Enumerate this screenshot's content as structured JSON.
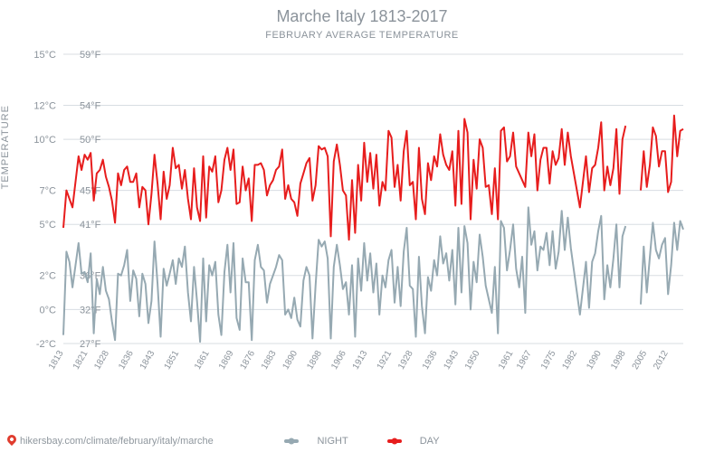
{
  "title": "Marche Italy 1813-2017",
  "subtitle": "FEBRUARY AVERAGE TEMPERATURE",
  "ylabel": "TEMPERATURE",
  "footer_url": "hikersbay.com/climate/february/italy/marche",
  "legend": {
    "night": "NIGHT",
    "day": "DAY"
  },
  "chart": {
    "type": "line",
    "background_color": "#ffffff",
    "grid_color": "#d8dde2",
    "text_color": "#8b939b",
    "series_colors": {
      "night": "#96a9b2",
      "day": "#e71d1d"
    },
    "line_width": 2,
    "xlim": [
      1813,
      2017
    ],
    "ylim_c": [
      -2,
      15
    ],
    "yticks": [
      {
        "c": -2,
        "f": 27
      },
      {
        "c": 0,
        "f": 32
      },
      {
        "c": 2,
        "f": 36
      },
      {
        "c": 5,
        "f": 41
      },
      {
        "c": 7,
        "f": 45
      },
      {
        "c": 10,
        "f": 50
      },
      {
        "c": 12,
        "f": 54
      },
      {
        "c": 15,
        "f": 59
      }
    ],
    "xticks": [
      1813,
      1821,
      1828,
      1836,
      1843,
      1851,
      1861,
      1869,
      1876,
      1883,
      1890,
      1898,
      1906,
      1913,
      1921,
      1928,
      1936,
      1943,
      1950,
      1961,
      1967,
      1975,
      1982,
      1990,
      1998,
      2005,
      2012
    ],
    "night": [
      [
        1813,
        -1.5
      ],
      [
        1814,
        3.4
      ],
      [
        1815,
        2.8
      ],
      [
        1816,
        1.3
      ],
      [
        1818,
        3.9
      ],
      [
        1819,
        2.1
      ],
      [
        1820,
        2.2
      ],
      [
        1821,
        1.6
      ],
      [
        1822,
        3.3
      ],
      [
        1823,
        -1.4
      ],
      [
        1824,
        1.8
      ],
      [
        1825,
        0.9
      ],
      [
        1826,
        2.5
      ],
      [
        1827,
        1.1
      ],
      [
        1828,
        0.6
      ],
      [
        1829,
        -0.7
      ],
      [
        1830,
        -1.8
      ],
      [
        1831,
        2.1
      ],
      [
        1832,
        2.0
      ],
      [
        1833,
        2.6
      ],
      [
        1834,
        3.5
      ],
      [
        1835,
        0.5
      ],
      [
        1836,
        2.3
      ],
      [
        1837,
        1.8
      ],
      [
        1838,
        -0.4
      ],
      [
        1839,
        2.1
      ],
      [
        1840,
        1.5
      ],
      [
        1841,
        -0.8
      ],
      [
        1842,
        0.5
      ],
      [
        1843,
        4.0
      ],
      [
        1844,
        1.5
      ],
      [
        1845,
        -1.6
      ],
      [
        1846,
        2.4
      ],
      [
        1847,
        1.4
      ],
      [
        1848,
        2.1
      ],
      [
        1849,
        2.9
      ],
      [
        1850,
        1.5
      ],
      [
        1851,
        3.0
      ],
      [
        1852,
        2.5
      ],
      [
        1853,
        3.7
      ],
      [
        1854,
        1.0
      ],
      [
        1855,
        -0.7
      ],
      [
        1856,
        2.5
      ],
      [
        1857,
        0.5
      ],
      [
        1858,
        -1.9
      ],
      [
        1859,
        3.0
      ],
      [
        1860,
        -0.7
      ],
      [
        1861,
        2.6
      ],
      [
        1862,
        2.0
      ],
      [
        1863,
        2.8
      ],
      [
        1864,
        -0.3
      ],
      [
        1865,
        -1.5
      ],
      [
        1866,
        2.2
      ],
      [
        1867,
        3.8
      ],
      [
        1868,
        1.0
      ],
      [
        1869,
        3.9
      ],
      [
        1870,
        -0.5
      ],
      [
        1871,
        -1.2
      ],
      [
        1872,
        3.0
      ],
      [
        1873,
        1.6
      ],
      [
        1874,
        1.6
      ],
      [
        1875,
        -1.8
      ],
      [
        1876,
        2.9
      ],
      [
        1877,
        3.8
      ],
      [
        1878,
        2.5
      ],
      [
        1879,
        2.3
      ],
      [
        1880,
        0.4
      ],
      [
        1881,
        1.5
      ],
      [
        1882,
        2.0
      ],
      [
        1883,
        2.5
      ],
      [
        1884,
        3.2
      ],
      [
        1885,
        2.9
      ],
      [
        1886,
        -0.3
      ],
      [
        1887,
        0.0
      ],
      [
        1888,
        -0.5
      ],
      [
        1889,
        0.7
      ],
      [
        1890,
        -0.6
      ],
      [
        1891,
        -1.0
      ],
      [
        1892,
        1.7
      ],
      [
        1893,
        2.5
      ],
      [
        1894,
        2.0
      ],
      [
        1895,
        -1.7
      ],
      [
        1896,
        1.4
      ],
      [
        1897,
        4.1
      ],
      [
        1898,
        3.7
      ],
      [
        1899,
        4.0
      ],
      [
        1900,
        3.0
      ],
      [
        1901,
        -1.7
      ],
      [
        1902,
        2.5
      ],
      [
        1903,
        3.8
      ],
      [
        1904,
        2.6
      ],
      [
        1905,
        1.2
      ],
      [
        1906,
        1.6
      ],
      [
        1907,
        -0.3
      ],
      [
        1908,
        2.6
      ],
      [
        1909,
        -1.6
      ],
      [
        1910,
        3.0
      ],
      [
        1911,
        1.1
      ],
      [
        1912,
        3.9
      ],
      [
        1913,
        1.7
      ],
      [
        1914,
        3.3
      ],
      [
        1915,
        1.0
      ],
      [
        1916,
        2.7
      ],
      [
        1917,
        -0.3
      ],
      [
        1918,
        2.0
      ],
      [
        1919,
        1.3
      ],
      [
        1920,
        2.9
      ],
      [
        1921,
        3.5
      ],
      [
        1922,
        0.4
      ],
      [
        1923,
        2.5
      ],
      [
        1924,
        0.2
      ],
      [
        1925,
        3.4
      ],
      [
        1926,
        4.8
      ],
      [
        1927,
        1.4
      ],
      [
        1928,
        1.2
      ],
      [
        1929,
        -1.6
      ],
      [
        1930,
        3.1
      ],
      [
        1931,
        0.2
      ],
      [
        1932,
        -1.4
      ],
      [
        1933,
        1.9
      ],
      [
        1934,
        1.1
      ],
      [
        1935,
        2.9
      ],
      [
        1936,
        2.0
      ],
      [
        1937,
        4.3
      ],
      [
        1938,
        2.7
      ],
      [
        1939,
        3.3
      ],
      [
        1940,
        1.7
      ],
      [
        1941,
        3.5
      ],
      [
        1942,
        0.3
      ],
      [
        1943,
        4.8
      ],
      [
        1944,
        1.0
      ],
      [
        1945,
        4.9
      ],
      [
        1946,
        3.9
      ],
      [
        1947,
        0.0
      ],
      [
        1948,
        2.8
      ],
      [
        1949,
        1.6
      ],
      [
        1950,
        4.4
      ],
      [
        1951,
        3.1
      ],
      [
        1952,
        1.4
      ],
      [
        1953,
        0.6
      ],
      [
        1954,
        -0.2
      ],
      [
        1955,
        2.5
      ],
      [
        1956,
        -1.4
      ],
      [
        1957,
        5.2
      ],
      [
        1958,
        4.8
      ],
      [
        1959,
        2.3
      ],
      [
        1960,
        3.5
      ],
      [
        1961,
        5.0
      ],
      [
        1962,
        2.4
      ],
      [
        1963,
        1.3
      ],
      [
        1964,
        3.1
      ],
      [
        1965,
        -0.2
      ],
      [
        1966,
        6.0
      ],
      [
        1967,
        3.8
      ],
      [
        1968,
        4.6
      ],
      [
        1969,
        2.3
      ],
      [
        1970,
        3.7
      ],
      [
        1971,
        3.5
      ],
      [
        1972,
        4.5
      ],
      [
        1973,
        2.6
      ],
      [
        1974,
        4.6
      ],
      [
        1975,
        2.4
      ],
      [
        1976,
        3.4
      ],
      [
        1977,
        5.8
      ],
      [
        1978,
        3.5
      ],
      [
        1979,
        5.4
      ],
      [
        1980,
        3.6
      ],
      [
        1983,
        -0.3
      ],
      [
        1985,
        2.8
      ],
      [
        1986,
        0.1
      ],
      [
        1987,
        2.8
      ],
      [
        1988,
        3.3
      ],
      [
        1989,
        4.6
      ],
      [
        1990,
        5.5
      ],
      [
        1991,
        0.6
      ],
      [
        1992,
        2.6
      ],
      [
        1993,
        1.3
      ],
      [
        1994,
        3.0
      ],
      [
        1995,
        5.0
      ],
      [
        1996,
        1.3
      ],
      [
        1997,
        4.3
      ],
      [
        1998,
        4.9
      ],
      [
        2003,
        0.3
      ],
      [
        2004,
        3.7
      ],
      [
        2005,
        1.0
      ],
      [
        2006,
        3.1
      ],
      [
        2007,
        5.1
      ],
      [
        2008,
        3.5
      ],
      [
        2009,
        3.0
      ],
      [
        2010,
        3.8
      ],
      [
        2011,
        4.2
      ],
      [
        2012,
        0.9
      ],
      [
        2013,
        2.6
      ],
      [
        2014,
        5.1
      ],
      [
        2015,
        3.5
      ],
      [
        2016,
        5.2
      ],
      [
        2017,
        4.7
      ]
    ],
    "day": [
      [
        1813,
        4.8
      ],
      [
        1814,
        7.0
      ],
      [
        1816,
        6.0
      ],
      [
        1818,
        9.0
      ],
      [
        1819,
        8.2
      ],
      [
        1820,
        9.1
      ],
      [
        1821,
        8.8
      ],
      [
        1822,
        9.2
      ],
      [
        1823,
        6.4
      ],
      [
        1824,
        8.0
      ],
      [
        1825,
        8.2
      ],
      [
        1826,
        8.8
      ],
      [
        1827,
        7.8
      ],
      [
        1828,
        7.2
      ],
      [
        1829,
        6.4
      ],
      [
        1830,
        5.1
      ],
      [
        1831,
        8.0
      ],
      [
        1832,
        7.3
      ],
      [
        1833,
        8.2
      ],
      [
        1834,
        8.4
      ],
      [
        1835,
        7.5
      ],
      [
        1836,
        7.5
      ],
      [
        1837,
        8.0
      ],
      [
        1838,
        6.0
      ],
      [
        1839,
        7.2
      ],
      [
        1840,
        7.0
      ],
      [
        1841,
        5.0
      ],
      [
        1842,
        6.8
      ],
      [
        1843,
        9.1
      ],
      [
        1844,
        7.4
      ],
      [
        1845,
        5.3
      ],
      [
        1846,
        8.1
      ],
      [
        1847,
        6.5
      ],
      [
        1848,
        7.3
      ],
      [
        1849,
        9.5
      ],
      [
        1850,
        8.3
      ],
      [
        1851,
        8.5
      ],
      [
        1852,
        7.1
      ],
      [
        1853,
        8.2
      ],
      [
        1854,
        6.5
      ],
      [
        1855,
        5.3
      ],
      [
        1856,
        8.3
      ],
      [
        1857,
        6.0
      ],
      [
        1858,
        5.2
      ],
      [
        1859,
        9.0
      ],
      [
        1860,
        5.4
      ],
      [
        1861,
        8.4
      ],
      [
        1862,
        8.1
      ],
      [
        1863,
        9.0
      ],
      [
        1864,
        6.3
      ],
      [
        1865,
        7.0
      ],
      [
        1866,
        8.8
      ],
      [
        1867,
        9.5
      ],
      [
        1868,
        8.2
      ],
      [
        1869,
        9.4
      ],
      [
        1870,
        6.2
      ],
      [
        1871,
        6.3
      ],
      [
        1872,
        8.4
      ],
      [
        1873,
        7.0
      ],
      [
        1874,
        7.7
      ],
      [
        1875,
        5.2
      ],
      [
        1876,
        8.5
      ],
      [
        1877,
        8.5
      ],
      [
        1878,
        8.6
      ],
      [
        1879,
        8.2
      ],
      [
        1880,
        6.7
      ],
      [
        1881,
        7.3
      ],
      [
        1882,
        7.6
      ],
      [
        1883,
        8.2
      ],
      [
        1884,
        8.4
      ],
      [
        1885,
        9.4
      ],
      [
        1886,
        6.5
      ],
      [
        1887,
        7.3
      ],
      [
        1888,
        6.5
      ],
      [
        1889,
        6.3
      ],
      [
        1890,
        5.5
      ],
      [
        1891,
        7.4
      ],
      [
        1892,
        8.0
      ],
      [
        1893,
        8.6
      ],
      [
        1894,
        8.9
      ],
      [
        1895,
        6.4
      ],
      [
        1896,
        7.3
      ],
      [
        1897,
        9.6
      ],
      [
        1898,
        9.4
      ],
      [
        1899,
        9.5
      ],
      [
        1900,
        9.0
      ],
      [
        1901,
        4.3
      ],
      [
        1902,
        8.7
      ],
      [
        1903,
        9.7
      ],
      [
        1904,
        8.5
      ],
      [
        1905,
        7.0
      ],
      [
        1906,
        6.7
      ],
      [
        1907,
        4.1
      ],
      [
        1908,
        7.6
      ],
      [
        1909,
        4.5
      ],
      [
        1910,
        8.5
      ],
      [
        1911,
        6.4
      ],
      [
        1912,
        9.8
      ],
      [
        1913,
        7.5
      ],
      [
        1914,
        9.2
      ],
      [
        1915,
        7.1
      ],
      [
        1916,
        9.1
      ],
      [
        1917,
        6.1
      ],
      [
        1918,
        7.5
      ],
      [
        1919,
        7.0
      ],
      [
        1920,
        10.5
      ],
      [
        1921,
        10.1
      ],
      [
        1922,
        7.2
      ],
      [
        1923,
        8.5
      ],
      [
        1924,
        6.4
      ],
      [
        1925,
        9.3
      ],
      [
        1926,
        10.5
      ],
      [
        1927,
        7.3
      ],
      [
        1928,
        7.5
      ],
      [
        1929,
        5.3
      ],
      [
        1930,
        9.5
      ],
      [
        1931,
        6.5
      ],
      [
        1932,
        5.6
      ],
      [
        1933,
        8.6
      ],
      [
        1934,
        7.6
      ],
      [
        1935,
        9.0
      ],
      [
        1936,
        8.4
      ],
      [
        1937,
        10.3
      ],
      [
        1938,
        9.1
      ],
      [
        1939,
        8.5
      ],
      [
        1940,
        8.2
      ],
      [
        1941,
        9.3
      ],
      [
        1942,
        6.1
      ],
      [
        1943,
        10.5
      ],
      [
        1944,
        6.2
      ],
      [
        1945,
        11.2
      ],
      [
        1946,
        10.4
      ],
      [
        1947,
        5.3
      ],
      [
        1948,
        8.8
      ],
      [
        1949,
        7.1
      ],
      [
        1950,
        10.0
      ],
      [
        1951,
        9.5
      ],
      [
        1952,
        7.2
      ],
      [
        1953,
        7.3
      ],
      [
        1954,
        5.6
      ],
      [
        1955,
        8.3
      ],
      [
        1956,
        5.3
      ],
      [
        1957,
        10.5
      ],
      [
        1958,
        10.7
      ],
      [
        1959,
        8.7
      ],
      [
        1960,
        9.0
      ],
      [
        1961,
        10.4
      ],
      [
        1962,
        8.4
      ],
      [
        1965,
        7.2
      ],
      [
        1966,
        10.4
      ],
      [
        1967,
        9.0
      ],
      [
        1968,
        10.3
      ],
      [
        1969,
        7.0
      ],
      [
        1970,
        8.8
      ],
      [
        1971,
        9.5
      ],
      [
        1972,
        9.5
      ],
      [
        1973,
        7.4
      ],
      [
        1974,
        9.3
      ],
      [
        1975,
        8.5
      ],
      [
        1976,
        8.9
      ],
      [
        1977,
        10.6
      ],
      [
        1978,
        8.5
      ],
      [
        1979,
        10.4
      ],
      [
        1980,
        9.0
      ],
      [
        1983,
        6.0
      ],
      [
        1985,
        9.0
      ],
      [
        1986,
        6.9
      ],
      [
        1987,
        8.3
      ],
      [
        1988,
        8.5
      ],
      [
        1989,
        9.5
      ],
      [
        1990,
        11.0
      ],
      [
        1991,
        7.0
      ],
      [
        1992,
        8.4
      ],
      [
        1993,
        7.3
      ],
      [
        1994,
        8.3
      ],
      [
        1995,
        10.6
      ],
      [
        1996,
        6.8
      ],
      [
        1997,
        10.0
      ],
      [
        1998,
        10.8
      ],
      [
        2003,
        7.0
      ],
      [
        2004,
        9.3
      ],
      [
        2005,
        7.2
      ],
      [
        2006,
        8.5
      ],
      [
        2007,
        10.7
      ],
      [
        2008,
        10.2
      ],
      [
        2009,
        8.4
      ],
      [
        2010,
        9.3
      ],
      [
        2011,
        9.3
      ],
      [
        2012,
        6.9
      ],
      [
        2013,
        7.5
      ],
      [
        2014,
        11.4
      ],
      [
        2015,
        9.0
      ],
      [
        2016,
        10.5
      ],
      [
        2017,
        10.6
      ]
    ]
  }
}
